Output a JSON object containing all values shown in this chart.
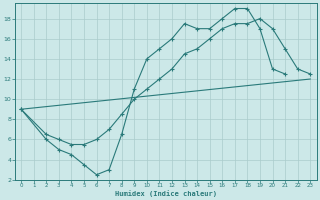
{
  "xlabel": "Humidex (Indice chaleur)",
  "bg_color": "#cce8e8",
  "grid_color": "#aacccc",
  "line_color": "#2a7a7a",
  "xlim": [
    -0.5,
    23.5
  ],
  "ylim": [
    2,
    19.5
  ],
  "xticks": [
    0,
    1,
    2,
    3,
    4,
    5,
    6,
    7,
    8,
    9,
    10,
    11,
    12,
    13,
    14,
    15,
    16,
    17,
    18,
    19,
    20,
    21,
    22,
    23
  ],
  "yticks": [
    2,
    4,
    6,
    8,
    10,
    12,
    14,
    16,
    18
  ],
  "curve1_x": [
    0,
    2,
    3,
    4,
    5,
    6,
    7,
    8,
    9,
    10,
    11,
    12,
    13,
    14,
    15,
    16,
    17,
    18,
    19,
    20,
    21
  ],
  "curve1_y": [
    9,
    6,
    5,
    4.5,
    3.5,
    2.5,
    3,
    6.5,
    11,
    14,
    15,
    16,
    17.5,
    17,
    17,
    18,
    19,
    19,
    17,
    13,
    12.5
  ],
  "curve2_x": [
    0,
    2,
    3,
    4,
    5,
    6,
    7,
    8,
    9,
    10,
    11,
    12,
    13,
    14,
    15,
    16,
    17,
    18,
    19,
    20,
    21,
    22,
    23
  ],
  "curve2_y": [
    9,
    6.5,
    6,
    5.5,
    5.5,
    6,
    7,
    8.5,
    10,
    11,
    12,
    13,
    14.5,
    15,
    16,
    17,
    17.5,
    17.5,
    18,
    17,
    15,
    13,
    12.5
  ],
  "curve3_x": [
    0,
    23
  ],
  "curve3_y": [
    9,
    12
  ]
}
